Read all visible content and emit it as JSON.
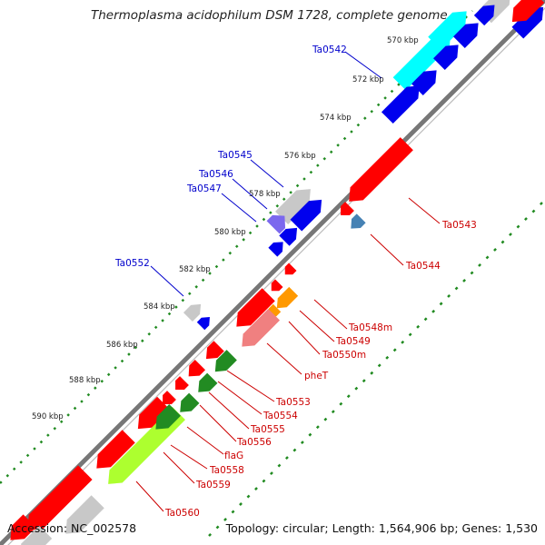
{
  "title": "Thermoplasma acidophilum DSM 1728, complete genome",
  "footer": {
    "accession": "Accession: NC_002578",
    "summary": "Topology: circular; Length: 1,564,906 bp; Genes: 1,530"
  },
  "colors": {
    "backbone": "#777777",
    "red": "#ff0000",
    "blue": "#0000ee",
    "cyan": "#00ffff",
    "gray": "#c8c8c8",
    "purple": "#7b68ee",
    "steelblue": "#4682b4",
    "orange": "#ff9900",
    "salmon": "#f08080",
    "green": "#228b22",
    "lime": "#adff2f",
    "tick": "#228b22",
    "top_label": "#0000cc",
    "bottom_label": "#cc0000"
  },
  "scale_labels": [
    "570 kbp",
    "572 kbp",
    "574 kbp",
    "576 kbp",
    "578 kbp",
    "580 kbp",
    "582 kbp",
    "584 kbp",
    "586 kbp",
    "588 kbp",
    "590 kbp"
  ],
  "top_gene_labels": [
    "Ta0542",
    "Ta0545",
    "Ta0546",
    "Ta0547",
    "Ta0552"
  ],
  "bottom_gene_labels": [
    "Ta0543",
    "Ta0544",
    "Ta0548m",
    "Ta0549",
    "Ta0550m",
    "pheT",
    "Ta0553",
    "Ta0554",
    "Ta0555",
    "Ta0556",
    "flaG",
    "Ta0558",
    "Ta0559",
    "Ta0560"
  ]
}
